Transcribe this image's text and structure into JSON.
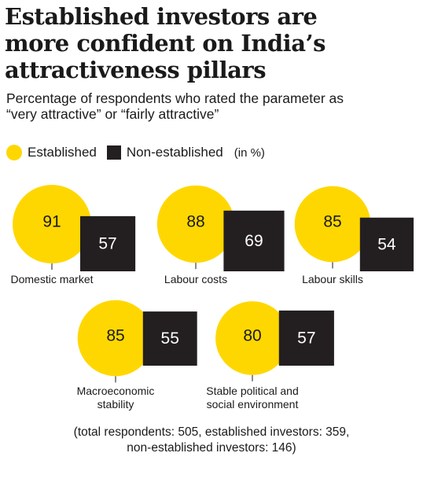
{
  "title_lines": [
    "Established investors are",
    "more confident on India’s",
    "attractiveness pillars"
  ],
  "subtitle_lines": [
    "Percentage of respondents who rated the parameter as",
    "“very attractive” or “fairly attractive”"
  ],
  "legend": {
    "established": "Established",
    "non_established": "Non-established",
    "unit": "(in %)"
  },
  "colors": {
    "established": "#ffd700",
    "non_established": "#231f20",
    "text": "#1a1a1a"
  },
  "chart_data": {
    "type": "bar",
    "title": "Established investors are more confident on India’s attractiveness pillars",
    "subtitle": "Percentage of respondents who rated the parameter as “very attractive” or “fairly attractive”",
    "unit": "(in %)",
    "categories": [
      [
        "Domestic market"
      ],
      [
        "Labour costs"
      ],
      [
        "Labour skills"
      ],
      [
        "Macroeconomic",
        "stability"
      ],
      [
        "Stable political and",
        "social environment"
      ]
    ],
    "series": [
      {
        "name": "Established",
        "shape": "circle",
        "values": [
          91,
          88,
          85,
          85,
          80
        ]
      },
      {
        "name": "Non-established",
        "shape": "square",
        "values": [
          57,
          69,
          54,
          55,
          57
        ]
      }
    ]
  },
  "footnote_lines": [
    "(total respondents: 505, established investors: 359,",
    "non-established investors: 146)"
  ]
}
